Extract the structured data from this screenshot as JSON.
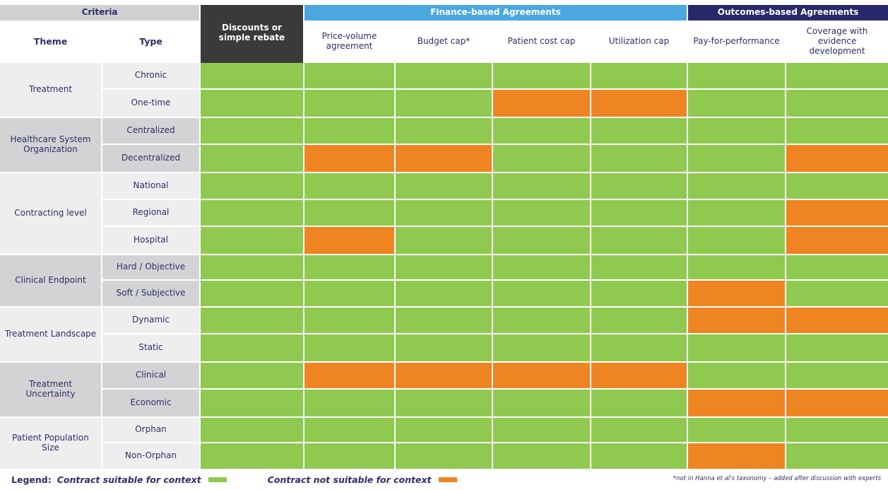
{
  "groups": {
    "criteria": "Criteria",
    "finance": "Finance-based Agreements",
    "outcomes": "Outcomes-based Agreements"
  },
  "columns": {
    "theme": "Theme",
    "type": "Type",
    "contracts": [
      "Discounts or simple rebate",
      "Price-volume agreement",
      "Budget cap*",
      "Patient cost cap",
      "Utilization cap",
      "Pay-for-performance",
      "Coverage with evidence development"
    ]
  },
  "themes": [
    "Treatment",
    "Healthcare System Organization",
    "Contracting level",
    "Clinical Endpoint",
    "Treatment Landscape",
    "Treatment Uncertainty",
    "Patient Population Size"
  ],
  "types": [
    "Chronic",
    "One-time",
    "Centralized",
    "Decentralized",
    "National",
    "Regional",
    "Hospital",
    "Hard / Objective",
    "Soft / Subjective",
    "Dynamic",
    "Static",
    "Clinical",
    "Economic",
    "Orphan",
    "Non-Orphan"
  ],
  "matrix": [
    [
      1,
      1,
      1,
      1,
      1,
      1,
      1
    ],
    [
      1,
      1,
      1,
      0,
      0,
      1,
      1
    ],
    [
      1,
      1,
      1,
      1,
      1,
      1,
      1
    ],
    [
      1,
      0,
      0,
      1,
      1,
      1,
      0
    ],
    [
      1,
      1,
      1,
      1,
      1,
      1,
      1
    ],
    [
      1,
      1,
      1,
      1,
      1,
      1,
      0
    ],
    [
      1,
      0,
      1,
      1,
      1,
      1,
      0
    ],
    [
      1,
      1,
      1,
      1,
      1,
      1,
      1
    ],
    [
      1,
      1,
      1,
      1,
      1,
      0,
      1
    ],
    [
      1,
      1,
      1,
      1,
      1,
      0,
      0
    ],
    [
      1,
      1,
      1,
      1,
      1,
      1,
      1
    ],
    [
      1,
      0,
      0,
      0,
      0,
      1,
      1
    ],
    [
      1,
      1,
      1,
      1,
      1,
      0,
      0
    ],
    [
      1,
      1,
      1,
      1,
      1,
      1,
      1
    ],
    [
      1,
      1,
      1,
      1,
      1,
      0,
      1
    ]
  ],
  "legend": {
    "label": "Legend:",
    "suitable": "Contract suitable for context",
    "not_suitable": "Contract not suitable for context"
  },
  "footnote": "*not in Hanna et al's taxonomy – added after discussion with experts",
  "colors": {
    "suitable": "#8fc94f",
    "not_suitable": "#ef8422",
    "finance_header": "#4aa7e0",
    "outcomes_header": "#28286a",
    "discount_header": "#3a3a3a"
  }
}
